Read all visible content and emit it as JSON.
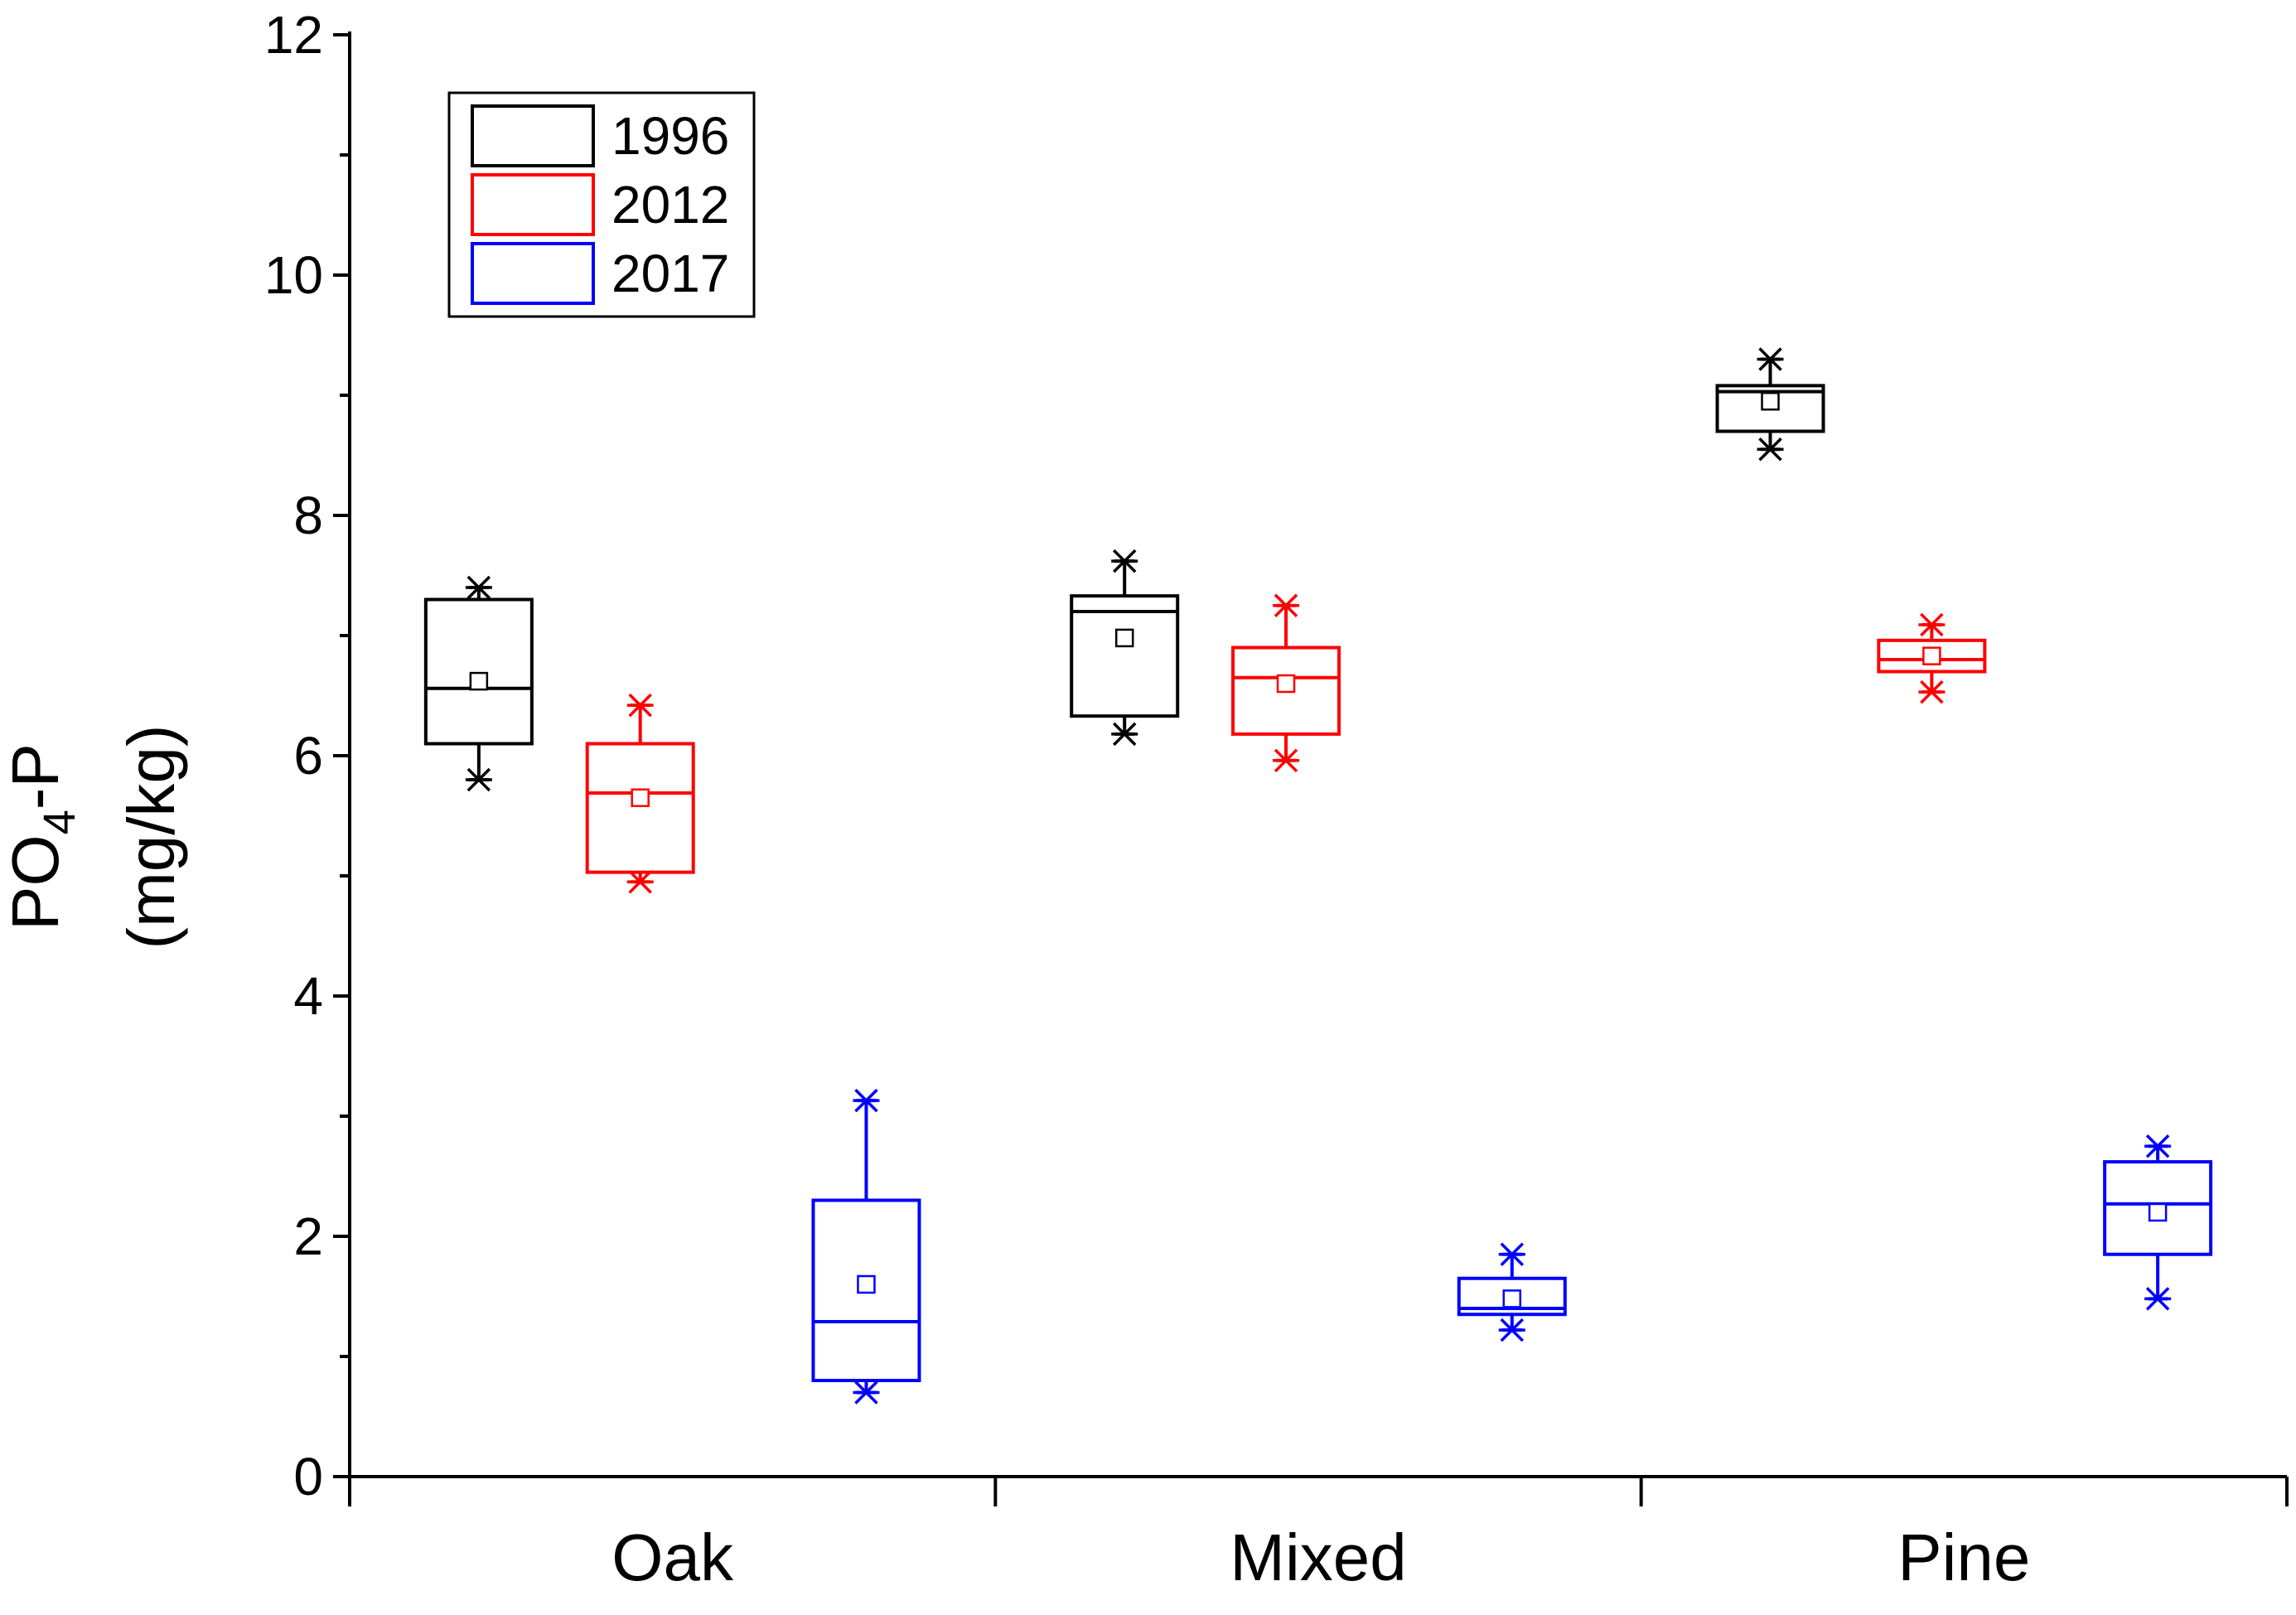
{
  "chart_data": {
    "type": "box",
    "title": "",
    "xlabel": "",
    "ylabel_main": "PO",
    "ylabel_sub": "4",
    "ylabel_suffix": "-P",
    "ylabel_unit": "(mg/kg)",
    "ylim": [
      0,
      12
    ],
    "yticks": [
      0,
      2,
      4,
      6,
      8,
      10,
      12
    ],
    "ytick_labels": [
      "0",
      "2",
      "4",
      "6",
      "8",
      "10",
      "12"
    ],
    "categories": [
      "Oak",
      "Mixed",
      "Pine"
    ],
    "legend_position": "top-left",
    "series": [
      {
        "name": "1996",
        "color": "#000000",
        "boxes": [
          {
            "min": 5.8,
            "q1": 6.1,
            "median": 6.56,
            "mean": 6.62,
            "q3": 7.3,
            "max": 7.4
          },
          {
            "min": 6.18,
            "q1": 6.33,
            "median": 7.2,
            "mean": 6.98,
            "q3": 7.33,
            "max": 7.62
          },
          {
            "min": 8.55,
            "q1": 8.7,
            "median": 9.03,
            "mean": 8.95,
            "q3": 9.08,
            "max": 9.3
          }
        ]
      },
      {
        "name": "2012",
        "color": "#ff0000",
        "boxes": [
          {
            "min": 4.95,
            "q1": 5.03,
            "median": 5.69,
            "mean": 5.65,
            "q3": 6.1,
            "max": 6.42
          },
          {
            "min": 5.96,
            "q1": 6.18,
            "median": 6.65,
            "mean": 6.6,
            "q3": 6.9,
            "max": 7.25
          },
          {
            "min": 6.53,
            "q1": 6.7,
            "median": 6.8,
            "mean": 6.83,
            "q3": 6.96,
            "max": 7.09
          }
        ]
      },
      {
        "name": "2017",
        "color": "#0000ff",
        "boxes": [
          {
            "min": 0.7,
            "q1": 0.8,
            "median": 1.29,
            "mean": 1.6,
            "q3": 2.3,
            "max": 3.13
          },
          {
            "min": 1.22,
            "q1": 1.35,
            "median": 1.4,
            "mean": 1.48,
            "q3": 1.65,
            "max": 1.85
          },
          {
            "min": 1.48,
            "q1": 1.85,
            "median": 2.27,
            "mean": 2.2,
            "q3": 2.62,
            "max": 2.75
          }
        ]
      }
    ]
  }
}
